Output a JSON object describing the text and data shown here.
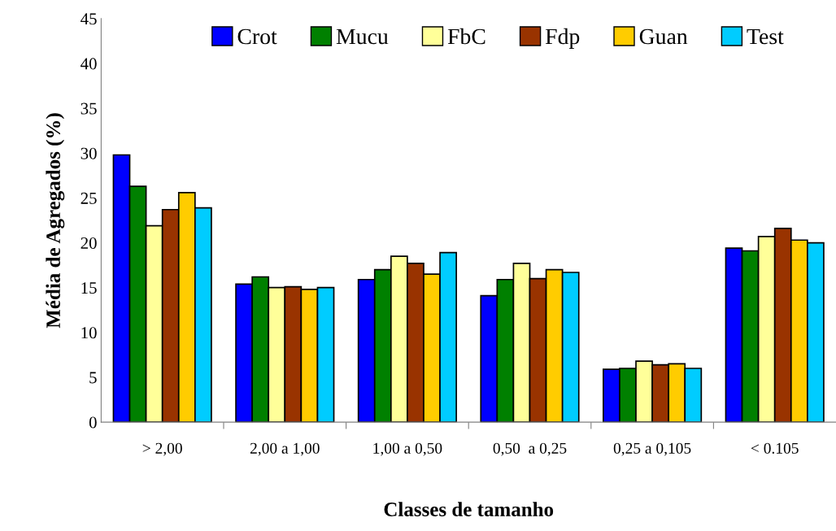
{
  "chart_data": {
    "type": "bar",
    "xlabel": "Classes de tamanho",
    "ylabel": "Média de Agregados (%)",
    "categories": [
      "> 2,00",
      "2,00 a 1,00",
      "1,00 a 0,50",
      "0,50  a 0,25",
      "0,25 a 0,105",
      "< 0.105"
    ],
    "series": [
      {
        "name": "Crot",
        "color": "#0000ff",
        "values": [
          29.8,
          15.4,
          15.9,
          14.1,
          5.9,
          19.4
        ]
      },
      {
        "name": "Mucu",
        "color": "#008000",
        "values": [
          26.3,
          16.2,
          17.0,
          15.9,
          6.0,
          19.1
        ]
      },
      {
        "name": "FbC",
        "color": "#ffff99",
        "values": [
          21.9,
          15.0,
          18.5,
          17.7,
          6.8,
          20.7
        ]
      },
      {
        "name": "Fdp",
        "color": "#993300",
        "values": [
          23.7,
          15.1,
          17.7,
          16.0,
          6.4,
          21.6
        ]
      },
      {
        "name": "Guan",
        "color": "#ffcc00",
        "values": [
          25.6,
          14.8,
          16.5,
          17.0,
          6.5,
          20.3
        ]
      },
      {
        "name": "Test",
        "color": "#00ccff",
        "values": [
          23.9,
          15.0,
          18.9,
          16.7,
          6.0,
          20.0
        ]
      }
    ],
    "ylim": [
      0,
      45
    ],
    "yticks": [
      0,
      5,
      10,
      15,
      20,
      25,
      30,
      35,
      40,
      45
    ],
    "legend": "top",
    "grid": false
  }
}
